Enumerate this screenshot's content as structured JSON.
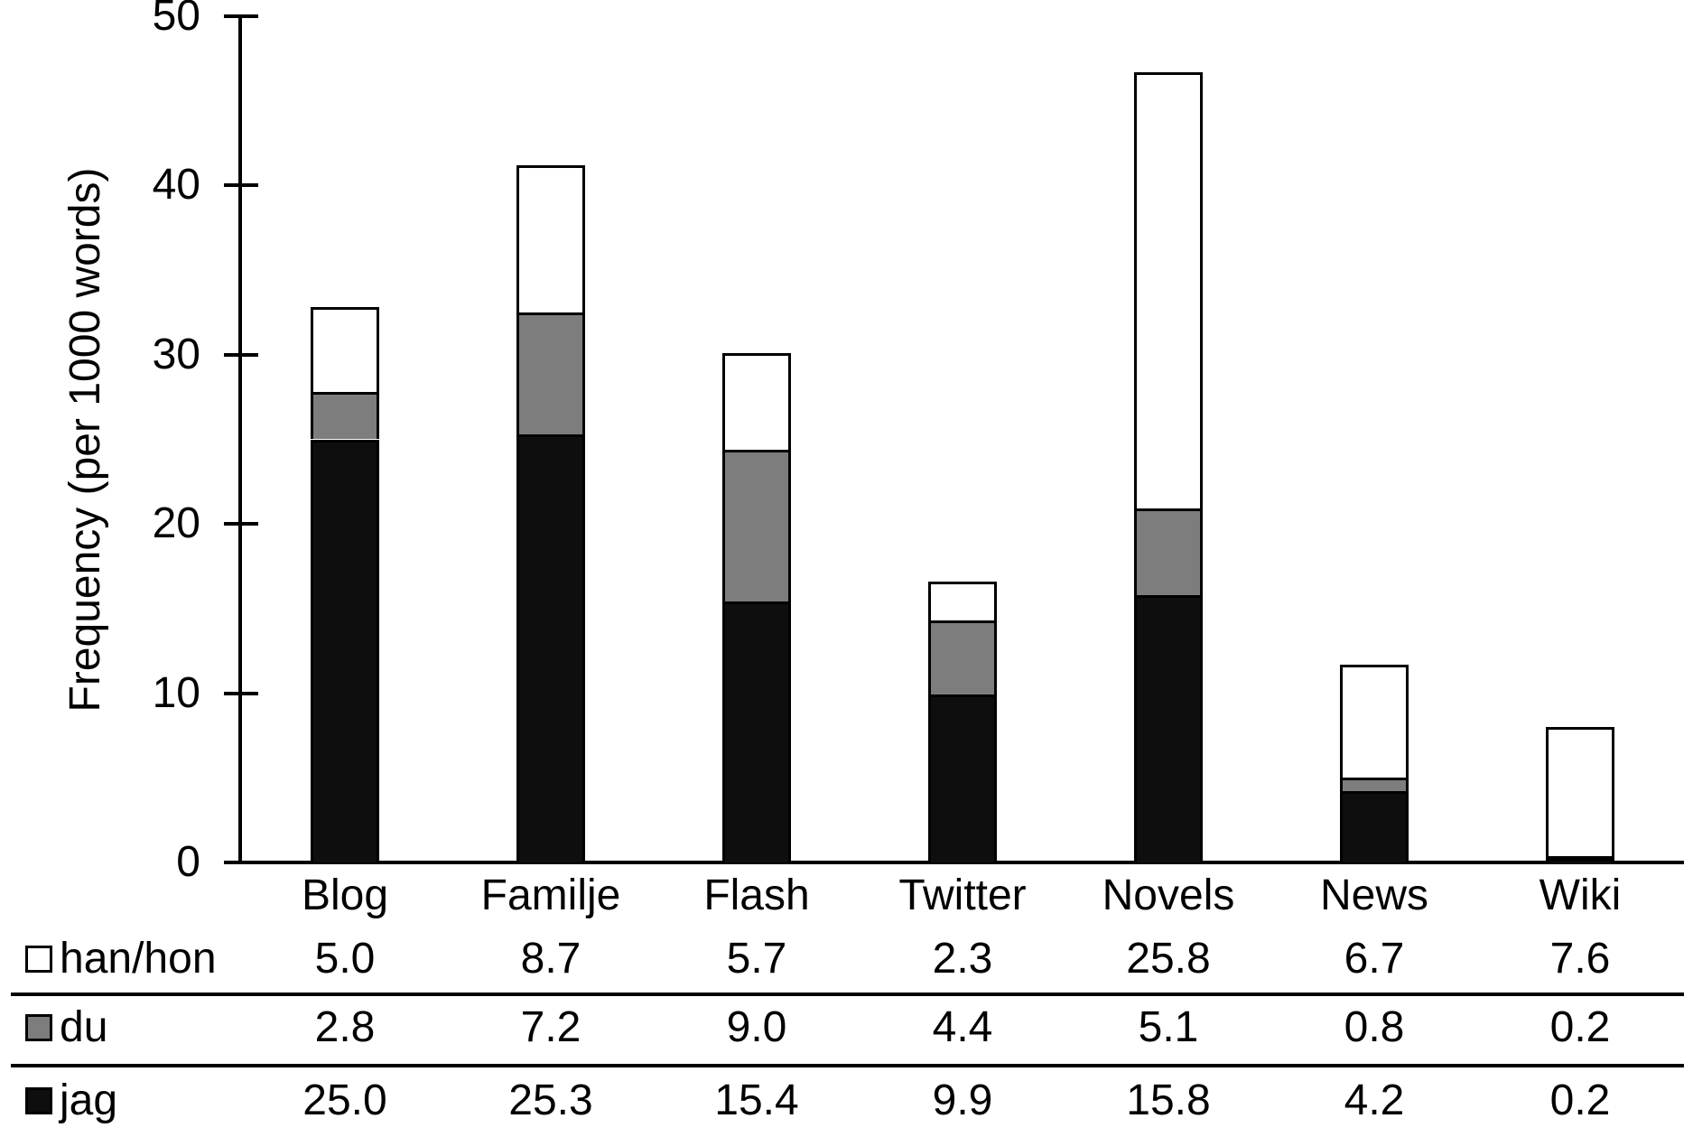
{
  "chart_data": {
    "type": "bar",
    "stacked": true,
    "title": "",
    "xlabel": "",
    "ylabel": "Frequency (per 1000 words)",
    "ylim": [
      0,
      50
    ],
    "yticks": [
      0,
      10,
      20,
      30,
      40,
      50
    ],
    "grid": false,
    "legend_position": "table-rows-left",
    "categories": [
      "Blog",
      "Familje",
      "Flash",
      "Twitter",
      "Novels",
      "News",
      "Wiki"
    ],
    "series": [
      {
        "name": "han/hon",
        "color": "#ffffff",
        "values": [
          5.0,
          8.7,
          5.7,
          2.3,
          25.8,
          6.7,
          7.6
        ]
      },
      {
        "name": "du",
        "color": "#7d7d7d",
        "values": [
          2.8,
          7.2,
          9.0,
          4.4,
          5.1,
          0.8,
          0.2
        ]
      },
      {
        "name": "jag",
        "color": "#0e0e0e",
        "values": [
          25.0,
          25.3,
          15.4,
          9.9,
          15.8,
          4.2,
          0.2
        ]
      }
    ],
    "axis_color": "#000000"
  }
}
